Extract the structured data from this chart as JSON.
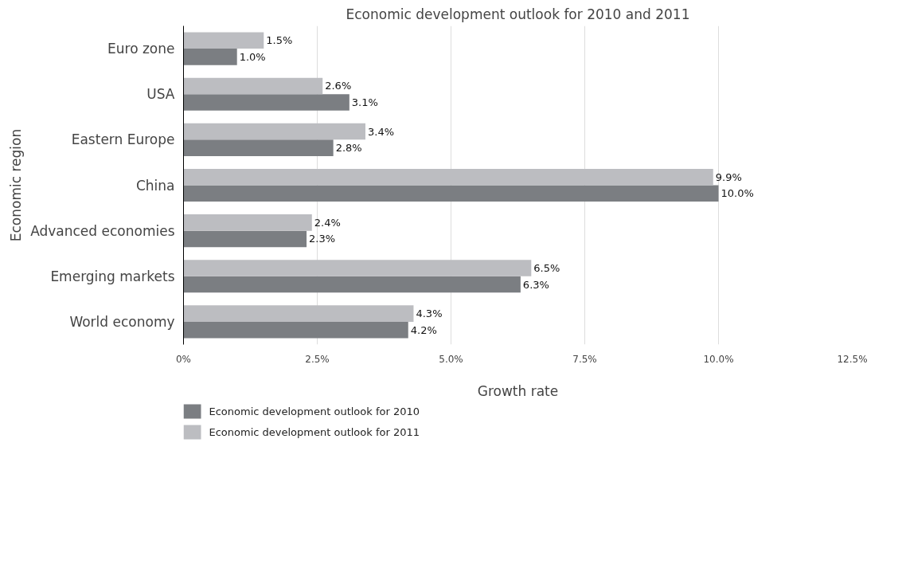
{
  "chart_data": {
    "type": "bar",
    "orientation": "horizontal",
    "title": "Economic development outlook for 2010 and 2011",
    "xlabel": "Growth rate",
    "ylabel": "Economic region",
    "categories": [
      "Euro zone",
      "USA",
      "Eastern Europe",
      "China",
      "Advanced economies",
      "Emerging markets",
      "World economy"
    ],
    "series": [
      {
        "name": "Economic development outlook for 2010",
        "color": "#7b7e82",
        "values": [
          1.0,
          3.1,
          2.8,
          10.0,
          2.3,
          6.3,
          4.2
        ],
        "value_labels": [
          "1.0%",
          "3.1%",
          "2.8%",
          "10.0%",
          "2.3%",
          "6.3%",
          "4.2%"
        ]
      },
      {
        "name": "Economic development outlook for 2011",
        "color": "#bcbdc1",
        "values": [
          1.5,
          2.6,
          3.4,
          9.9,
          2.4,
          6.5,
          4.3
        ],
        "value_labels": [
          "1.5%",
          "2.6%",
          "3.4%",
          "9.9%",
          "2.4%",
          "6.5%",
          "4.3%"
        ]
      }
    ],
    "xlim": [
      0,
      12.5
    ],
    "xticks": [
      {
        "value": 0,
        "label": "0%"
      },
      {
        "value": 2.5,
        "label": "2.5%"
      },
      {
        "value": 5,
        "label": "5.0%"
      },
      {
        "value": 7.5,
        "label": "7.5%"
      },
      {
        "value": 10,
        "label": "10.0%"
      },
      {
        "value": 12.5,
        "label": "12.5%"
      }
    ],
    "grid": "x",
    "legend": "bottom"
  }
}
